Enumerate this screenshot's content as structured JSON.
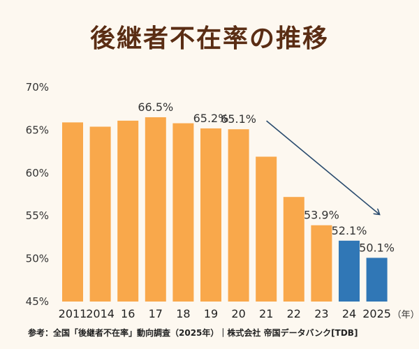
{
  "colors": {
    "bar_default": "#f9a84b",
    "bar_highlight": "#3077b6",
    "arrow": "#2a4b6e",
    "title": "#5a2d14",
    "background": "#fdf8f0"
  },
  "chart_data": {
    "type": "bar",
    "title": "後継者不在率の推移",
    "categories": [
      "2011",
      "2014",
      "16",
      "17",
      "18",
      "19",
      "20",
      "21",
      "22",
      "23",
      "24",
      "2025"
    ],
    "values": [
      65.9,
      65.4,
      66.1,
      66.5,
      65.8,
      65.2,
      65.1,
      61.9,
      57.2,
      53.9,
      52.1,
      50.1
    ],
    "data_labels": [
      "",
      "",
      "",
      "66.5%",
      "",
      "65.2%",
      "65.1%",
      "",
      "",
      "53.9%",
      "52.1%",
      "50.1%"
    ],
    "highlight_indices": [
      10,
      11
    ],
    "y_ticks": [
      "45%",
      "50%",
      "55%",
      "60%",
      "65%",
      "70%"
    ],
    "y_tick_values": [
      45,
      50,
      55,
      60,
      65,
      70
    ],
    "ylim": [
      45,
      70
    ],
    "x_unit": "（年）",
    "grid": false,
    "trend_arrow": {
      "from_index": 6,
      "to_index": 11
    }
  },
  "footer": "参考：全国「後継者不在率」動向調査（2025年）｜株式会社 帝国データバンク[TDB]"
}
